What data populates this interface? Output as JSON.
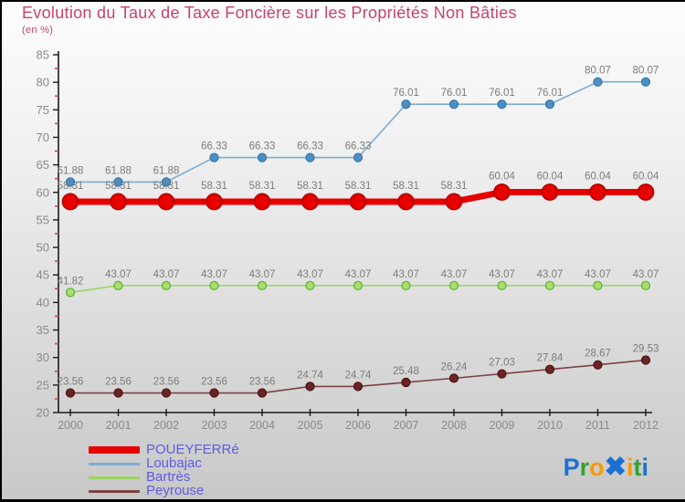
{
  "chart_data": {
    "type": "line",
    "title": "Evolution du Taux de Taxe Foncière sur les Propriétés Non Bâties",
    "subtitle": "(en %)",
    "x": [
      2000,
      2001,
      2002,
      2003,
      2004,
      2005,
      2006,
      2007,
      2008,
      2009,
      2010,
      2011,
      2012
    ],
    "series": [
      {
        "name": "POUEYFERRé",
        "color": "#e60000",
        "marker_fill": "#e60000",
        "marker_stroke": "#bb0000",
        "thick": true,
        "values": [
          58.31,
          58.31,
          58.31,
          58.31,
          58.31,
          58.31,
          58.31,
          58.31,
          58.31,
          60.04,
          60.04,
          60.04,
          60.04
        ]
      },
      {
        "name": "Loubajac",
        "color": "#7aadd6",
        "marker_fill": "#4d8fc4",
        "marker_stroke": "#3a79ab",
        "thick": false,
        "values": [
          61.88,
          61.88,
          61.88,
          66.33,
          66.33,
          66.33,
          66.33,
          76.01,
          76.01,
          76.01,
          76.01,
          80.07,
          80.07
        ]
      },
      {
        "name": "Bartrès",
        "color": "#9ad45f",
        "marker_fill": "#a8df70",
        "marker_stroke": "#62b32f",
        "thick": false,
        "values": [
          41.82,
          43.07,
          43.07,
          43.07,
          43.07,
          43.07,
          43.07,
          43.07,
          43.07,
          43.07,
          43.07,
          43.07,
          43.07
        ]
      },
      {
        "name": "Peyrouse",
        "color": "#7d4141",
        "marker_fill": "#6a2424",
        "marker_stroke": "#521616",
        "thick": false,
        "values": [
          23.56,
          23.56,
          23.56,
          23.56,
          23.56,
          24.74,
          24.74,
          25.48,
          26.24,
          27.03,
          27.84,
          28.67,
          29.53
        ]
      }
    ],
    "ylim": [
      20,
      85
    ],
    "ytick_major": 5,
    "ytick_minor": 2.5,
    "grid": false,
    "legend_position": "bottom-left",
    "value_label_decimals": 2
  },
  "palette": {
    "title": "#c8426c",
    "legend_text": "#5c5ce6",
    "data_label": "#7c7c7c",
    "axis_label": "#8a8a8a",
    "axis_line": "#1a1a1a",
    "minor_tick": "#cc4444"
  },
  "logo": {
    "letters": [
      {
        "ch": "P",
        "color": "#1e6fd2",
        "big": false
      },
      {
        "ch": "r",
        "color": "#35a035",
        "big": false
      },
      {
        "ch": "o",
        "color": "#f59b00",
        "big": false
      },
      {
        "ch": "✖",
        "color": "#1e6fd2",
        "big": true
      },
      {
        "ch": "i",
        "color": "#f59b00",
        "big": false
      },
      {
        "ch": "t",
        "color": "#35a035",
        "big": false
      },
      {
        "ch": "i",
        "color": "#1e6fd2",
        "big": false
      }
    ]
  }
}
